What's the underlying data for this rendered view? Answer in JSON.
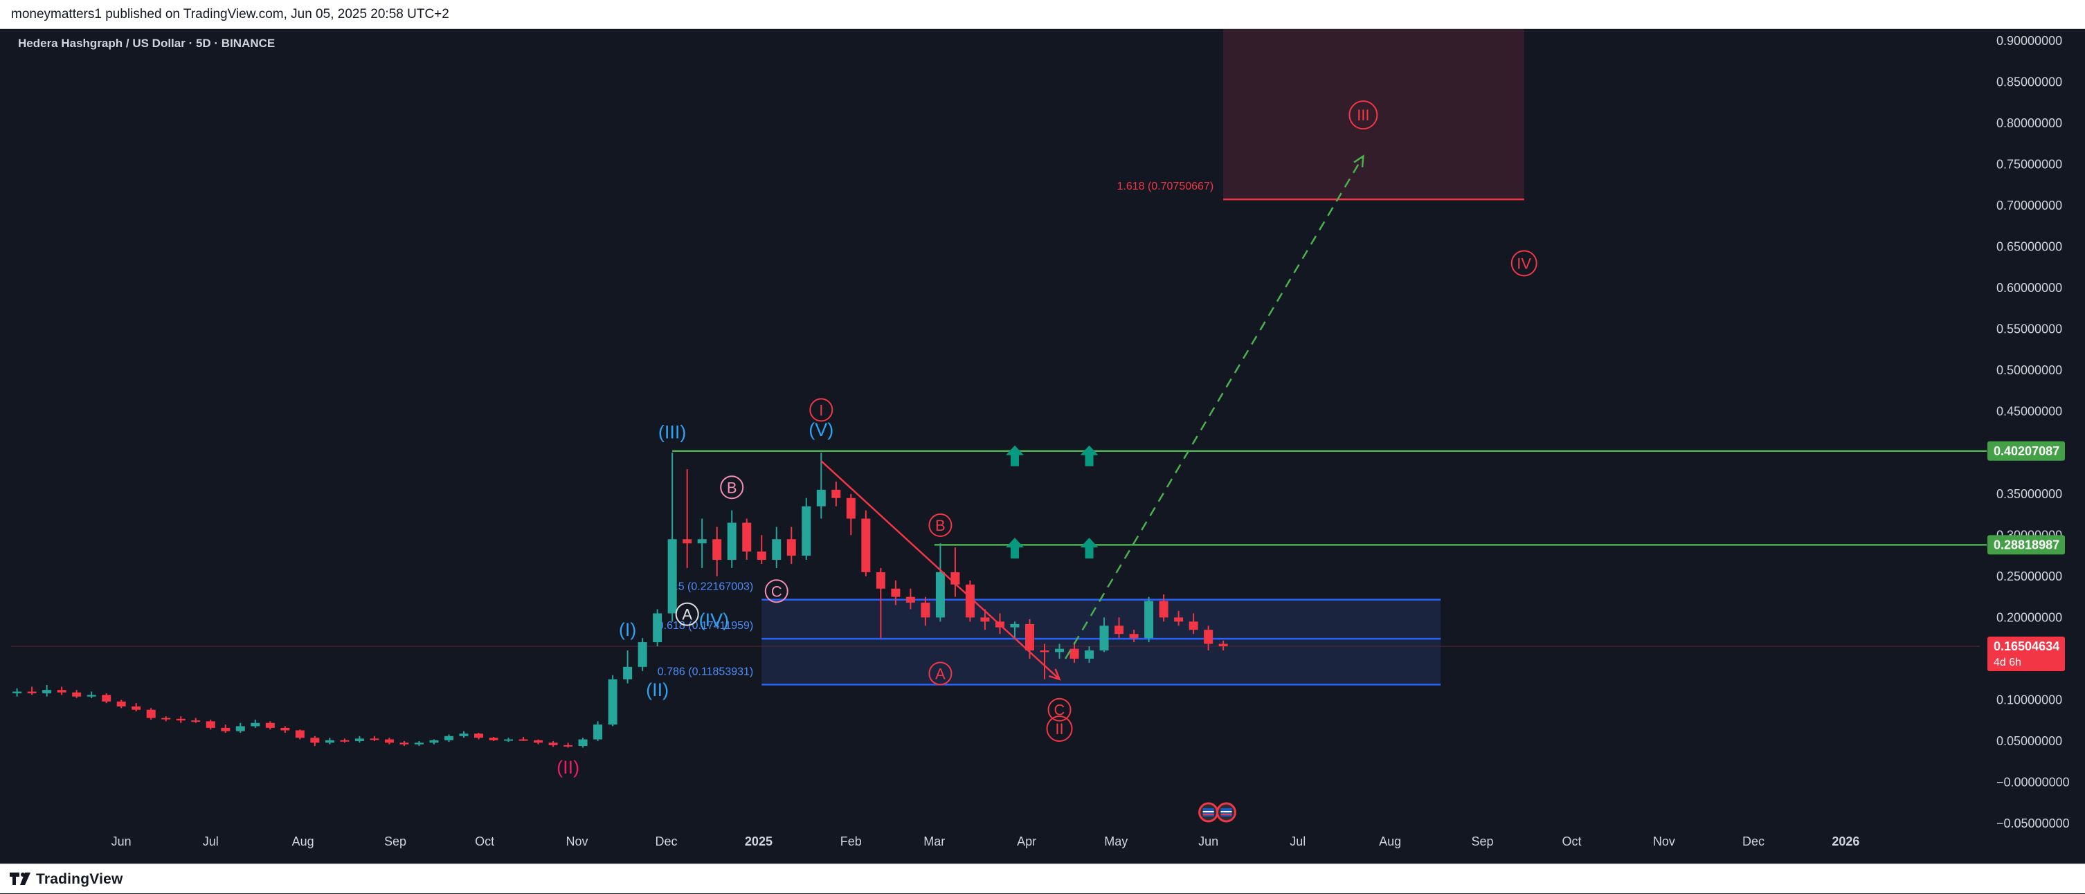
{
  "header": {
    "published_line": "moneymatters1 published on TradingView.com, Jun 05, 2025 20:58 UTC+2"
  },
  "footer": {
    "brand": "TradingView"
  },
  "colors": {
    "background": "#131722",
    "up": "#26a69a",
    "down": "#f23645",
    "axis_text": "#d1d4dc",
    "blue_wave": "#2ea3f2",
    "pink_wave": "#f48fb1",
    "red_wave": "#f23645",
    "fib_blue": "#2962ff",
    "green_level": "#4caf50",
    "target_zone": "#3b1f2b"
  },
  "chart_data": {
    "type": "candlestick",
    "title": "Hedera Hashgraph / US Dollar · 5D · BINANCE",
    "y_range": [
      -0.05,
      0.9
    ],
    "y_ticks": [
      {
        "value": 0.9,
        "label": "0.90000000"
      },
      {
        "value": 0.85,
        "label": "0.85000000"
      },
      {
        "value": 0.8,
        "label": "0.80000000"
      },
      {
        "value": 0.75,
        "label": "0.75000000"
      },
      {
        "value": 0.7,
        "label": "0.70000000"
      },
      {
        "value": 0.65,
        "label": "0.65000000"
      },
      {
        "value": 0.6,
        "label": "0.60000000"
      },
      {
        "value": 0.55,
        "label": "0.55000000"
      },
      {
        "value": 0.5,
        "label": "0.50000000"
      },
      {
        "value": 0.45,
        "label": "0.45000000"
      },
      {
        "value": 0.35,
        "label": "0.35000000"
      },
      {
        "value": 0.3,
        "label": "0.30000000"
      },
      {
        "value": 0.25,
        "label": "0.25000000"
      },
      {
        "value": 0.2,
        "label": "0.20000000"
      },
      {
        "value": 0.1,
        "label": "0.10000000"
      },
      {
        "value": 0.05,
        "label": "0.05000000"
      },
      {
        "value": 0.0,
        "label": "−0.00000000"
      },
      {
        "value": -0.05,
        "label": "−0.05000000"
      }
    ],
    "x_range": [
      "2024-04-25",
      "2026-02-15"
    ],
    "x_ticks": [
      {
        "date": "2024-06-01",
        "label": "Jun"
      },
      {
        "date": "2024-07-01",
        "label": "Jul"
      },
      {
        "date": "2024-08-01",
        "label": "Aug"
      },
      {
        "date": "2024-09-01",
        "label": "Sep"
      },
      {
        "date": "2024-10-01",
        "label": "Oct"
      },
      {
        "date": "2024-11-01",
        "label": "Nov"
      },
      {
        "date": "2024-12-01",
        "label": "Dec"
      },
      {
        "date": "2025-01-01",
        "label": "2025"
      },
      {
        "date": "2025-02-01",
        "label": "Feb"
      },
      {
        "date": "2025-03-01",
        "label": "Mar"
      },
      {
        "date": "2025-04-01",
        "label": "Apr"
      },
      {
        "date": "2025-05-01",
        "label": "May"
      },
      {
        "date": "2025-06-01",
        "label": "Jun"
      },
      {
        "date": "2025-07-01",
        "label": "Jul"
      },
      {
        "date": "2025-08-01",
        "label": "Aug"
      },
      {
        "date": "2025-09-01",
        "label": "Sep"
      },
      {
        "date": "2025-10-01",
        "label": "Oct"
      },
      {
        "date": "2025-11-01",
        "label": "Nov"
      },
      {
        "date": "2025-12-01",
        "label": "Dec"
      },
      {
        "date": "2026-01-01",
        "label": "2026"
      }
    ],
    "candles": [
      {
        "date": "2024-04-27",
        "o": 0.108,
        "h": 0.114,
        "l": 0.104,
        "c": 0.11
      },
      {
        "date": "2024-05-02",
        "o": 0.11,
        "h": 0.116,
        "l": 0.106,
        "c": 0.108
      },
      {
        "date": "2024-05-07",
        "o": 0.108,
        "h": 0.118,
        "l": 0.104,
        "c": 0.112
      },
      {
        "date": "2024-05-12",
        "o": 0.112,
        "h": 0.116,
        "l": 0.106,
        "c": 0.109
      },
      {
        "date": "2024-05-17",
        "o": 0.109,
        "h": 0.112,
        "l": 0.102,
        "c": 0.104
      },
      {
        "date": "2024-05-22",
        "o": 0.104,
        "h": 0.11,
        "l": 0.102,
        "c": 0.106
      },
      {
        "date": "2024-05-27",
        "o": 0.106,
        "h": 0.108,
        "l": 0.096,
        "c": 0.098
      },
      {
        "date": "2024-06-01",
        "o": 0.098,
        "h": 0.1,
        "l": 0.09,
        "c": 0.092
      },
      {
        "date": "2024-06-06",
        "o": 0.092,
        "h": 0.096,
        "l": 0.086,
        "c": 0.088
      },
      {
        "date": "2024-06-11",
        "o": 0.088,
        "h": 0.09,
        "l": 0.076,
        "c": 0.078
      },
      {
        "date": "2024-06-16",
        "o": 0.078,
        "h": 0.08,
        "l": 0.074,
        "c": 0.077
      },
      {
        "date": "2024-06-21",
        "o": 0.077,
        "h": 0.08,
        "l": 0.072,
        "c": 0.075
      },
      {
        "date": "2024-06-26",
        "o": 0.075,
        "h": 0.078,
        "l": 0.072,
        "c": 0.074
      },
      {
        "date": "2024-07-01",
        "o": 0.074,
        "h": 0.076,
        "l": 0.064,
        "c": 0.066
      },
      {
        "date": "2024-07-06",
        "o": 0.066,
        "h": 0.07,
        "l": 0.06,
        "c": 0.062
      },
      {
        "date": "2024-07-11",
        "o": 0.062,
        "h": 0.072,
        "l": 0.06,
        "c": 0.068
      },
      {
        "date": "2024-07-16",
        "o": 0.068,
        "h": 0.076,
        "l": 0.066,
        "c": 0.072
      },
      {
        "date": "2024-07-21",
        "o": 0.072,
        "h": 0.074,
        "l": 0.064,
        "c": 0.066
      },
      {
        "date": "2024-07-26",
        "o": 0.066,
        "h": 0.068,
        "l": 0.06,
        "c": 0.063
      },
      {
        "date": "2024-07-31",
        "o": 0.063,
        "h": 0.064,
        "l": 0.052,
        "c": 0.054
      },
      {
        "date": "2024-08-05",
        "o": 0.054,
        "h": 0.056,
        "l": 0.044,
        "c": 0.048
      },
      {
        "date": "2024-08-10",
        "o": 0.048,
        "h": 0.054,
        "l": 0.046,
        "c": 0.051
      },
      {
        "date": "2024-08-15",
        "o": 0.051,
        "h": 0.053,
        "l": 0.048,
        "c": 0.05
      },
      {
        "date": "2024-08-20",
        "o": 0.05,
        "h": 0.056,
        "l": 0.048,
        "c": 0.053
      },
      {
        "date": "2024-08-25",
        "o": 0.053,
        "h": 0.056,
        "l": 0.05,
        "c": 0.052
      },
      {
        "date": "2024-08-30",
        "o": 0.052,
        "h": 0.054,
        "l": 0.046,
        "c": 0.048
      },
      {
        "date": "2024-09-04",
        "o": 0.048,
        "h": 0.05,
        "l": 0.044,
        "c": 0.046
      },
      {
        "date": "2024-09-09",
        "o": 0.046,
        "h": 0.05,
        "l": 0.044,
        "c": 0.048
      },
      {
        "date": "2024-09-14",
        "o": 0.048,
        "h": 0.052,
        "l": 0.046,
        "c": 0.051
      },
      {
        "date": "2024-09-19",
        "o": 0.051,
        "h": 0.058,
        "l": 0.049,
        "c": 0.056
      },
      {
        "date": "2024-09-24",
        "o": 0.056,
        "h": 0.062,
        "l": 0.054,
        "c": 0.059
      },
      {
        "date": "2024-09-29",
        "o": 0.059,
        "h": 0.06,
        "l": 0.052,
        "c": 0.054
      },
      {
        "date": "2024-10-04",
        "o": 0.054,
        "h": 0.055,
        "l": 0.05,
        "c": 0.051
      },
      {
        "date": "2024-10-09",
        "o": 0.051,
        "h": 0.054,
        "l": 0.049,
        "c": 0.052
      },
      {
        "date": "2024-10-14",
        "o": 0.052,
        "h": 0.055,
        "l": 0.05,
        "c": 0.051
      },
      {
        "date": "2024-10-19",
        "o": 0.051,
        "h": 0.052,
        "l": 0.046,
        "c": 0.048
      },
      {
        "date": "2024-10-24",
        "o": 0.048,
        "h": 0.05,
        "l": 0.043,
        "c": 0.045
      },
      {
        "date": "2024-10-29",
        "o": 0.045,
        "h": 0.048,
        "l": 0.042,
        "c": 0.044
      },
      {
        "date": "2024-11-03",
        "o": 0.044,
        "h": 0.054,
        "l": 0.042,
        "c": 0.052
      },
      {
        "date": "2024-11-08",
        "o": 0.052,
        "h": 0.074,
        "l": 0.05,
        "c": 0.07
      },
      {
        "date": "2024-11-13",
        "o": 0.07,
        "h": 0.13,
        "l": 0.068,
        "c": 0.125
      },
      {
        "date": "2024-11-18",
        "o": 0.125,
        "h": 0.16,
        "l": 0.12,
        "c": 0.14
      },
      {
        "date": "2024-11-23",
        "o": 0.14,
        "h": 0.175,
        "l": 0.135,
        "c": 0.17
      },
      {
        "date": "2024-11-28",
        "o": 0.17,
        "h": 0.21,
        "l": 0.165,
        "c": 0.205
      },
      {
        "date": "2024-12-03",
        "o": 0.205,
        "h": 0.4,
        "l": 0.195,
        "c": 0.295
      },
      {
        "date": "2024-12-08",
        "o": 0.295,
        "h": 0.38,
        "l": 0.26,
        "c": 0.29
      },
      {
        "date": "2024-12-13",
        "o": 0.29,
        "h": 0.32,
        "l": 0.26,
        "c": 0.295
      },
      {
        "date": "2024-12-18",
        "o": 0.295,
        "h": 0.31,
        "l": 0.25,
        "c": 0.27
      },
      {
        "date": "2024-12-23",
        "o": 0.27,
        "h": 0.33,
        "l": 0.26,
        "c": 0.315
      },
      {
        "date": "2024-12-28",
        "o": 0.315,
        "h": 0.32,
        "l": 0.27,
        "c": 0.28
      },
      {
        "date": "2025-01-02",
        "o": 0.28,
        "h": 0.3,
        "l": 0.265,
        "c": 0.27
      },
      {
        "date": "2025-01-07",
        "o": 0.27,
        "h": 0.31,
        "l": 0.26,
        "c": 0.295
      },
      {
        "date": "2025-01-12",
        "o": 0.295,
        "h": 0.31,
        "l": 0.265,
        "c": 0.275
      },
      {
        "date": "2025-01-17",
        "o": 0.275,
        "h": 0.345,
        "l": 0.27,
        "c": 0.335
      },
      {
        "date": "2025-01-22",
        "o": 0.335,
        "h": 0.4,
        "l": 0.32,
        "c": 0.355
      },
      {
        "date": "2025-01-27",
        "o": 0.355,
        "h": 0.365,
        "l": 0.335,
        "c": 0.345
      },
      {
        "date": "2025-02-01",
        "o": 0.345,
        "h": 0.35,
        "l": 0.3,
        "c": 0.32
      },
      {
        "date": "2025-02-06",
        "o": 0.32,
        "h": 0.33,
        "l": 0.25,
        "c": 0.255
      },
      {
        "date": "2025-02-11",
        "o": 0.255,
        "h": 0.26,
        "l": 0.175,
        "c": 0.235
      },
      {
        "date": "2025-02-16",
        "o": 0.235,
        "h": 0.245,
        "l": 0.215,
        "c": 0.225
      },
      {
        "date": "2025-02-21",
        "o": 0.225,
        "h": 0.235,
        "l": 0.21,
        "c": 0.218
      },
      {
        "date": "2025-02-26",
        "o": 0.218,
        "h": 0.225,
        "l": 0.19,
        "c": 0.2
      },
      {
        "date": "2025-03-03",
        "o": 0.2,
        "h": 0.29,
        "l": 0.195,
        "c": 0.255
      },
      {
        "date": "2025-03-08",
        "o": 0.255,
        "h": 0.285,
        "l": 0.225,
        "c": 0.24
      },
      {
        "date": "2025-03-13",
        "o": 0.24,
        "h": 0.245,
        "l": 0.195,
        "c": 0.2
      },
      {
        "date": "2025-03-18",
        "o": 0.2,
        "h": 0.21,
        "l": 0.185,
        "c": 0.195
      },
      {
        "date": "2025-03-23",
        "o": 0.195,
        "h": 0.205,
        "l": 0.18,
        "c": 0.188
      },
      {
        "date": "2025-03-28",
        "o": 0.188,
        "h": 0.195,
        "l": 0.175,
        "c": 0.192
      },
      {
        "date": "2025-04-02",
        "o": 0.192,
        "h": 0.198,
        "l": 0.15,
        "c": 0.16
      },
      {
        "date": "2025-04-07",
        "o": 0.16,
        "h": 0.168,
        "l": 0.125,
        "c": 0.158
      },
      {
        "date": "2025-04-12",
        "o": 0.158,
        "h": 0.168,
        "l": 0.15,
        "c": 0.162
      },
      {
        "date": "2025-04-17",
        "o": 0.162,
        "h": 0.17,
        "l": 0.145,
        "c": 0.15
      },
      {
        "date": "2025-04-22",
        "o": 0.15,
        "h": 0.165,
        "l": 0.145,
        "c": 0.16
      },
      {
        "date": "2025-04-27",
        "o": 0.16,
        "h": 0.2,
        "l": 0.158,
        "c": 0.19
      },
      {
        "date": "2025-05-02",
        "o": 0.19,
        "h": 0.2,
        "l": 0.175,
        "c": 0.18
      },
      {
        "date": "2025-05-07",
        "o": 0.18,
        "h": 0.185,
        "l": 0.17,
        "c": 0.175
      },
      {
        "date": "2025-05-12",
        "o": 0.175,
        "h": 0.225,
        "l": 0.17,
        "c": 0.22
      },
      {
        "date": "2025-05-17",
        "o": 0.22,
        "h": 0.228,
        "l": 0.195,
        "c": 0.2
      },
      {
        "date": "2025-05-22",
        "o": 0.2,
        "h": 0.208,
        "l": 0.19,
        "c": 0.195
      },
      {
        "date": "2025-05-27",
        "o": 0.195,
        "h": 0.205,
        "l": 0.18,
        "c": 0.185
      },
      {
        "date": "2025-06-01",
        "o": 0.185,
        "h": 0.19,
        "l": 0.16,
        "c": 0.168
      },
      {
        "date": "2025-06-06",
        "o": 0.168,
        "h": 0.172,
        "l": 0.16,
        "c": 0.165
      }
    ],
    "horizontal_levels": [
      {
        "value": 0.40207087,
        "label": "0.40207087",
        "from": "2024-12-03",
        "to": "2026-02-15",
        "color": "#4caf50",
        "badge": true
      },
      {
        "value": 0.28818987,
        "label": "0.28818987",
        "from": "2025-03-01",
        "to": "2026-02-15",
        "color": "#4caf50",
        "badge": true
      },
      {
        "value": 0.16504634,
        "label": "0.16504634",
        "sub_label": "4d 6h",
        "from": "2024-04-25",
        "to": "2026-02-15",
        "color": "#f23645",
        "badge": true,
        "price_line": true
      }
    ],
    "fib_zone": {
      "from": "2025-01-02",
      "to": "2025-08-18",
      "levels": [
        {
          "value": 0.22167003,
          "label": "0.5 (0.22167003)"
        },
        {
          "value": 0.17411959,
          "label": "0.618 (0.17411959)"
        },
        {
          "value": 0.11853931,
          "label": "0.786 (0.11853931)"
        }
      ]
    },
    "target_zone": {
      "from": "2025-06-06",
      "to": "2025-09-15",
      "bottom": 0.7075,
      "top": 0.92,
      "label": "1.618 (0.70750667)"
    },
    "trend_arrow": {
      "from": {
        "date": "2025-01-22",
        "value": 0.39
      },
      "to": {
        "date": "2025-04-12",
        "value": 0.125
      }
    },
    "projection_arrow": {
      "from": {
        "date": "2025-04-14",
        "value": 0.15
      },
      "to": {
        "date": "2025-07-23",
        "value": 0.76
      }
    },
    "up_arrows": [
      {
        "date": "2025-03-28",
        "value": 0.392
      },
      {
        "date": "2025-04-22",
        "value": 0.392
      },
      {
        "date": "2025-03-28",
        "value": 0.28
      },
      {
        "date": "2025-04-22",
        "value": 0.28
      }
    ],
    "wave_labels": [
      {
        "text": "(III)",
        "date": "2024-12-03",
        "value": 0.425,
        "color": "#2ea3f2",
        "circle": false
      },
      {
        "text": "(V)",
        "date": "2025-01-22",
        "value": 0.428,
        "color": "#2ea3f2",
        "circle": false
      },
      {
        "text": "I",
        "date": "2025-01-22",
        "value": 0.452,
        "color": "#f23645",
        "circle": true
      },
      {
        "text": "(I)",
        "date": "2024-11-18",
        "value": 0.185,
        "color": "#2ea3f2",
        "circle": false
      },
      {
        "text": "(II)",
        "date": "2024-11-28",
        "value": 0.112,
        "color": "#2ea3f2",
        "circle": false
      },
      {
        "text": "(IV)",
        "date": "2024-12-17",
        "value": 0.197,
        "color": "#2ea3f2",
        "circle": false
      },
      {
        "text": "(II)",
        "date": "2024-10-29",
        "value": 0.018,
        "color": "#e91e63",
        "circle": false
      },
      {
        "text": "B",
        "date": "2024-12-23",
        "value": 0.358,
        "color": "#f48fb1",
        "circle": true
      },
      {
        "text": "A",
        "date": "2024-12-08",
        "value": 0.204,
        "color": "#e0e0e0",
        "circle": true
      },
      {
        "text": "C",
        "date": "2025-01-07",
        "value": 0.232,
        "color": "#f48fb1",
        "circle": true
      },
      {
        "text": "B",
        "date": "2025-03-03",
        "value": 0.312,
        "color": "#f23645",
        "circle": true
      },
      {
        "text": "A",
        "date": "2025-03-03",
        "value": 0.132,
        "color": "#f23645",
        "circle": true
      },
      {
        "text": "C",
        "date": "2025-04-12",
        "value": 0.088,
        "color": "#f23645",
        "circle": true
      },
      {
        "text": "II",
        "date": "2025-04-12",
        "value": 0.065,
        "color": "#f23645",
        "circle": true
      },
      {
        "text": "III",
        "date": "2025-07-23",
        "value": 0.81,
        "color": "#f23645",
        "circle": true
      },
      {
        "text": "IV",
        "date": "2025-09-15",
        "value": 0.63,
        "color": "#f23645",
        "circle": true
      }
    ],
    "event_icons": [
      {
        "date": "2025-06-01"
      },
      {
        "date": "2025-06-07"
      }
    ]
  }
}
